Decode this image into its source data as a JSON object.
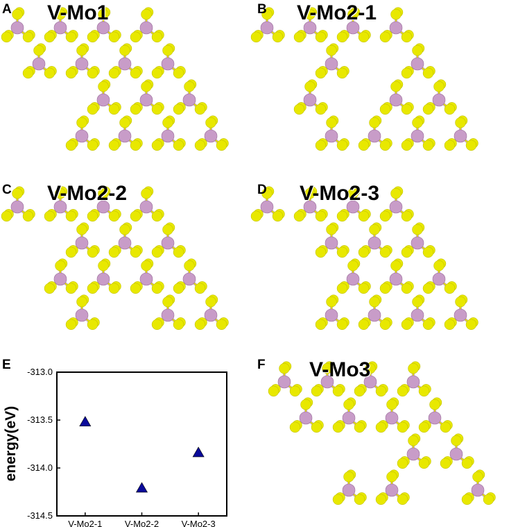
{
  "panels": [
    {
      "letter": "A",
      "title": "V-Mo1"
    },
    {
      "letter": "B",
      "title": "V-Mo2-1"
    },
    {
      "letter": "C",
      "title": "V-Mo2-2"
    },
    {
      "letter": "D",
      "title": "V-Mo2-3"
    },
    {
      "letter": "E",
      "title": ""
    },
    {
      "letter": "F",
      "title": "V-Mo3"
    }
  ],
  "colors": {
    "mo_atom": "#c89cc8",
    "s_atom": "#e8e800",
    "bond_mo": "#c9a9c9",
    "bond_s": "#e0e000",
    "marker": "#0a0a9a"
  },
  "chart_data": {
    "type": "scatter",
    "title": "",
    "xlabel": "",
    "ylabel": "energy(eV)",
    "categories": [
      "V-Mo2-1",
      "V-Mo2-2",
      "V-Mo2-3"
    ],
    "values": [
      -313.52,
      -314.21,
      -313.84
    ],
    "ylim": [
      -314.5,
      -313.0
    ],
    "yticks": [
      -313.0,
      -313.5,
      -314.0,
      -314.5
    ],
    "ytick_labels": [
      "-313.0",
      "-313.5",
      "-314.0",
      "-314.5"
    ],
    "marker": "triangle",
    "grid": false,
    "legend": "none"
  }
}
